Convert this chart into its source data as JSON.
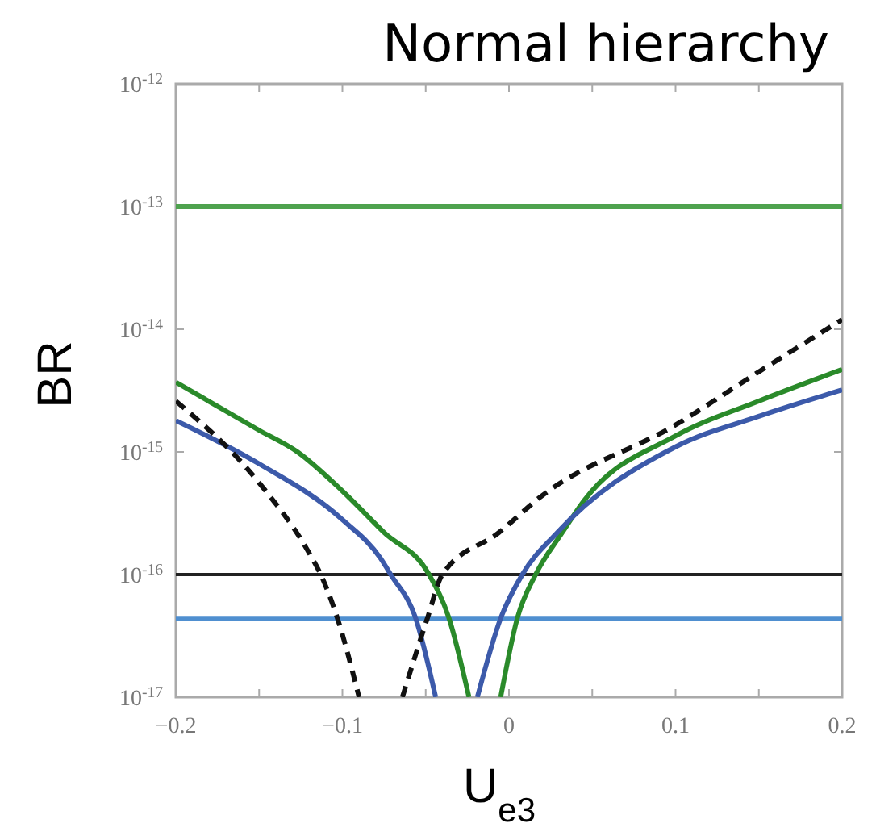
{
  "chart_data": {
    "type": "line",
    "title": "Normal hierarchy",
    "xlabel": "U$_{e3}$",
    "ylabel": "BR",
    "log": "y",
    "grid": false,
    "xlim": [
      -0.2,
      0.2
    ],
    "ylim": [
      1e-17,
      1e-12
    ],
    "xticks": [
      {
        "value": -0.2,
        "label": "−0.2"
      },
      {
        "value": -0.15,
        "label": null
      },
      {
        "value": -0.1,
        "label": "−0.1"
      },
      {
        "value": -0.05,
        "label": null
      },
      0,
      {
        "value": 0.05,
        "label": null
      },
      0.1,
      {
        "value": 0.15,
        "label": null
      },
      0.2
    ],
    "yticks": [
      {
        "value": 1e-17,
        "label": "10$^{-17}$"
      },
      {
        "value": 1e-16,
        "label": "10$^{-16}$"
      },
      {
        "value": 1e-15,
        "label": "10$^{-15}$"
      },
      {
        "value": 1e-14,
        "label": "10$^{-14}$"
      },
      {
        "value": 1e-13,
        "label": "10$^{-13}$"
      },
      {
        "value": 1e-12,
        "label": "10$^{-12}$"
      }
    ],
    "ref_lines": [
      {
        "axis": "y",
        "value": 1e-13,
        "color": "#4ea24e"
      },
      {
        "axis": "y",
        "value": 1e-16,
        "color": "#222222"
      },
      {
        "axis": "y",
        "value": 4.4e-17,
        "color": "#4f8fd0"
      }
    ],
    "series": [
      {
        "color": "#2a8a2a",
        "line_style": "solid",
        "x": [
          -0.2,
          -0.15,
          -0.127,
          -0.1,
          -0.075,
          -0.048,
          -0.036,
          -0.024,
          null,
          -0.005,
          0.005,
          0.016,
          0.032,
          0.045,
          0.1,
          0.15,
          0.2
        ],
        "values": [
          3.7e-15,
          1.5e-15,
          1e-15,
          4.8e-16,
          2.2e-16,
          1e-16,
          4.4e-17,
          1e-17,
          null,
          1e-17,
          4.4e-17,
          1e-16,
          2.2e-16,
          4e-16,
          1.35e-15,
          2.6e-15,
          4.7e-15
        ]
      },
      {
        "color": "#3c5aaa",
        "line_style": "solid",
        "x": [
          -0.2,
          -0.15,
          -0.1,
          -0.077,
          -0.071,
          -0.056,
          -0.044,
          null,
          -0.019,
          -0.005,
          0.008,
          0.029,
          0.1,
          0.15,
          0.2
        ],
        "values": [
          1.8e-15,
          8e-16,
          2.8e-16,
          1.35e-16,
          1e-16,
          4.4e-17,
          1e-17,
          null,
          1e-17,
          4.4e-17,
          1e-16,
          2.2e-16,
          1.1e-15,
          1.95e-15,
          3.2e-15
        ]
      },
      {
        "color": "#111111",
        "line_style": "dashed",
        "x": [
          -0.2,
          -0.15,
          -0.12,
          -0.113,
          -0.103,
          -0.09,
          null,
          -0.064,
          -0.049,
          -0.04,
          -0.006,
          0.019,
          0.1,
          0.15,
          0.2
        ],
        "values": [
          2.6e-15,
          5.6e-16,
          1.5e-16,
          1e-16,
          4.4e-17,
          1e-17,
          null,
          1e-17,
          4.4e-17,
          1e-16,
          2.2e-16,
          4.3e-16,
          1.66e-15,
          4.5e-15,
          1.2e-14
        ]
      }
    ]
  }
}
